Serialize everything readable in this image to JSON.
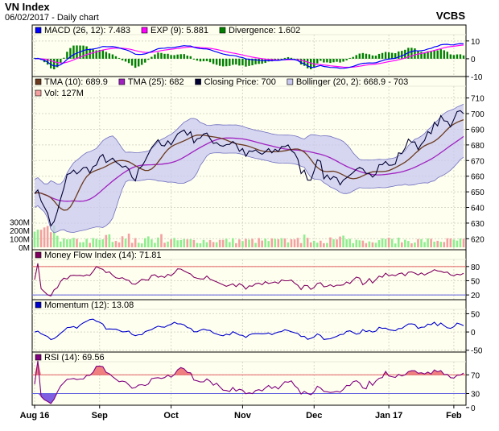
{
  "header": {
    "title": "VN Index",
    "subtitle": "06/02/2017 - Daily chart",
    "source": "VCBS"
  },
  "colors": {
    "panel_bg": "#fffff0",
    "grid": "#d8d8c8",
    "border": "#000000",
    "macd": "#0000ff",
    "exp": "#ff00ff",
    "divergence": "#008000",
    "tma10": "#6b3a1f",
    "tma25": "#a020c0",
    "close": "#000033",
    "bollinger_fill": "#c8c8f0",
    "bollinger_edge": "#7070c0",
    "vol_up": "#90ee90",
    "vol_down": "#f4a0a0",
    "mfi": "#800060",
    "momentum": "#0000cc",
    "rsi": "#800080",
    "rsi_high_fill": "#f08080",
    "rsi_low_fill": "#8060e0",
    "red_line": "#e06060",
    "blue_line": "#6060e0"
  },
  "chart_data": {
    "type": "line",
    "x_labels": [
      "Aug 16",
      "Sep",
      "Oct",
      "Nov",
      "Dec",
      "Jan 17",
      "Feb"
    ],
    "x_label_index": [
      0,
      20,
      42,
      64,
      86,
      109,
      129
    ],
    "n_bars": 133,
    "close_anchors": [
      [
        0,
        652
      ],
      [
        3,
        642
      ],
      [
        5,
        628
      ],
      [
        7,
        636
      ],
      [
        10,
        660
      ],
      [
        14,
        664
      ],
      [
        18,
        665
      ],
      [
        21,
        672
      ],
      [
        25,
        668
      ],
      [
        28,
        664
      ],
      [
        31,
        658
      ],
      [
        34,
        672
      ],
      [
        37,
        682
      ],
      [
        40,
        678
      ],
      [
        43,
        685
      ],
      [
        46,
        690
      ],
      [
        49,
        684
      ],
      [
        52,
        686
      ],
      [
        56,
        682
      ],
      [
        58,
        680
      ],
      [
        61,
        682
      ],
      [
        65,
        673
      ],
      [
        68,
        676
      ],
      [
        70,
        674
      ],
      [
        74,
        676
      ],
      [
        78,
        681
      ],
      [
        80,
        673
      ],
      [
        82,
        664
      ],
      [
        85,
        658
      ],
      [
        87,
        673
      ],
      [
        89,
        660
      ],
      [
        92,
        660
      ],
      [
        95,
        655
      ],
      [
        98,
        660
      ],
      [
        101,
        666
      ],
      [
        104,
        662
      ],
      [
        107,
        669
      ],
      [
        110,
        666
      ],
      [
        113,
        676
      ],
      [
        116,
        684
      ],
      [
        119,
        678
      ],
      [
        122,
        690
      ],
      [
        125,
        696
      ],
      [
        128,
        693
      ],
      [
        130,
        703
      ],
      [
        132,
        700
      ]
    ],
    "panels": [
      {
        "id": "macd",
        "legend": [
          {
            "label": "MACD (26, 12): 7.483",
            "color": "#0000ff"
          },
          {
            "label": "EXP (9): 5.881",
            "color": "#ff00ff"
          },
          {
            "label": "Divergence: 1.602",
            "color": "#008000"
          }
        ],
        "ylim": [
          -10,
          14
        ],
        "ticks": [
          10,
          0,
          -10
        ],
        "tick_labels": [
          "10",
          "0",
          "-10"
        ]
      },
      {
        "id": "price",
        "legend": [
          {
            "label": "TMA (10): 689.9",
            "color": "#6b3a1f"
          },
          {
            "label": "TMA (25): 682",
            "color": "#a020c0"
          },
          {
            "label": "Closing Price: 700",
            "color": "#000033"
          },
          {
            "label": "Bollinger (20, 2): 668.9 - 703",
            "color": "#c8c8f0"
          },
          {
            "label": "Vol: 127M",
            "color": "#f4a0a0"
          }
        ],
        "ylim": [
          614,
          716
        ],
        "ticks": [
          710,
          700,
          690,
          680,
          670,
          660,
          650,
          640,
          630,
          620
        ],
        "tick_labels": [
          "710",
          "700",
          "690",
          "680",
          "670",
          "660",
          "650",
          "640",
          "630",
          "620"
        ],
        "volume_ticks": [
          300,
          200,
          100,
          0
        ],
        "volume_tick_labels": [
          "300M",
          "200M",
          "100M",
          "0M"
        ],
        "volume_max": 420
      },
      {
        "id": "mfi",
        "legend": [
          {
            "label": "Money Flow Index (14): 71.81",
            "color": "#800060"
          }
        ],
        "ylim": [
          10,
          95
        ],
        "ticks": [
          80,
          50,
          20
        ],
        "tick_labels": [
          "80",
          "50",
          "20"
        ],
        "ref_lines": [
          80,
          20
        ]
      },
      {
        "id": "momentum",
        "legend": [
          {
            "label": "Momentum (12): 13.08",
            "color": "#0000cc"
          }
        ],
        "ylim": [
          -55,
          62
        ],
        "ticks": [
          50,
          0,
          -50
        ],
        "tick_labels": [
          "50",
          "0",
          "-50"
        ]
      },
      {
        "id": "rsi",
        "legend": [
          {
            "label": "RSI (14): 69.56",
            "color": "#800080"
          }
        ],
        "ylim": [
          5,
          98
        ],
        "ticks": [
          70,
          30,
          0
        ],
        "tick_labels": [
          "70",
          "30",
          "0"
        ],
        "ref_lines": [
          70,
          30
        ]
      }
    ]
  }
}
